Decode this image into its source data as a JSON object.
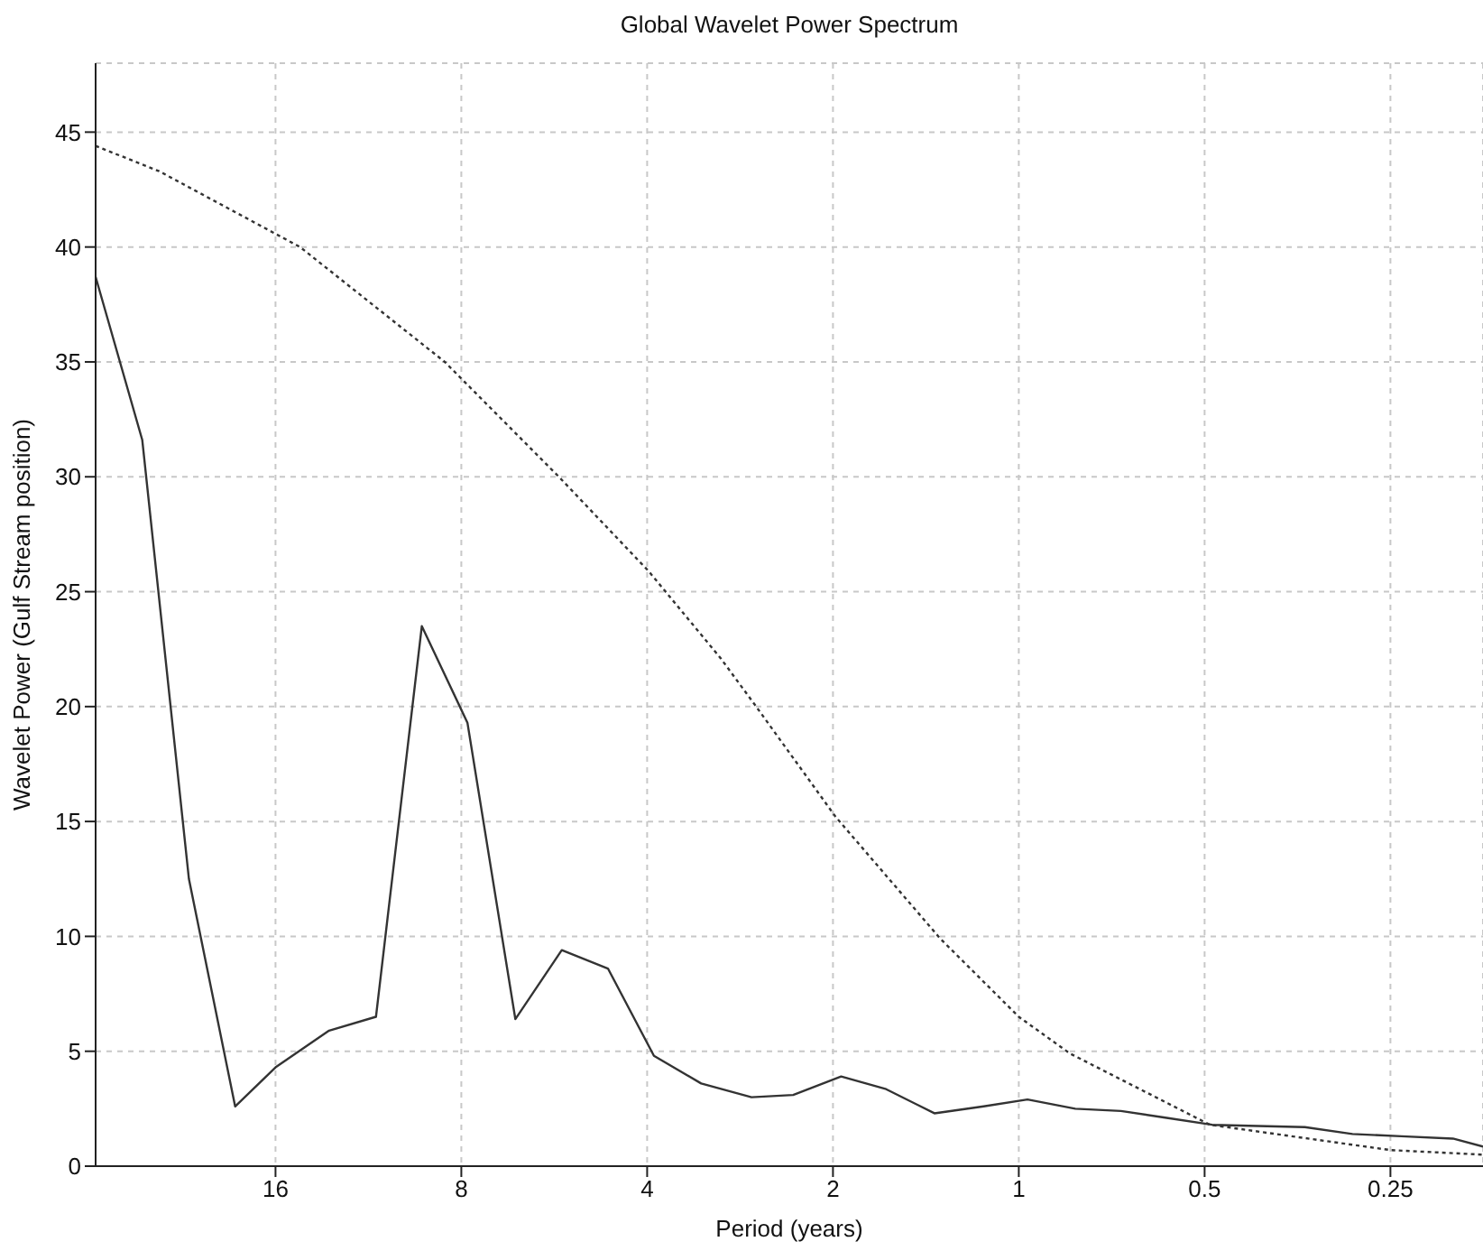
{
  "chart_data": {
    "type": "line",
    "title": "Global Wavelet Power Spectrum",
    "xlabel": "Period (years)",
    "ylabel": "Wavelet Power (Gulf Stream position)",
    "log": "x",
    "grid": true,
    "marker": "none",
    "xlim": [
      31.3,
      0.177
    ],
    "xticks": [
      16,
      8,
      4,
      2,
      1,
      0.5,
      0.25
    ],
    "ylim": [
      0,
      48
    ],
    "yticks": [
      0,
      5,
      10,
      15,
      20,
      25,
      30,
      35,
      40,
      45
    ],
    "series": [
      {
        "color": "#333333",
        "line_style": "solid",
        "x": [
          31.3,
          26.3,
          22.1,
          18.6,
          16,
          13.1,
          11.0,
          9.27,
          7.82,
          6.54,
          5.5,
          4.63,
          3.9,
          3.27,
          2.71,
          2.32,
          1.94,
          1.64,
          1.37,
          1.14,
          0.968,
          0.81,
          0.683,
          0.576,
          0.486,
          0.41,
          0.344,
          0.288,
          0.24,
          0.198,
          0.177
        ],
        "values": [
          38.7,
          31.6,
          12.5,
          2.6,
          4.3,
          5.9,
          6.5,
          23.5,
          19.3,
          6.4,
          9.4,
          8.6,
          4.8,
          3.6,
          3.0,
          3.1,
          3.9,
          3.35,
          2.3,
          2.6,
          2.9,
          2.5,
          2.4,
          2.1,
          1.8,
          1.75,
          1.7,
          1.4,
          1.3,
          1.2,
          0.85
        ]
      },
      {
        "color": "#333333",
        "line_style": "dotted",
        "x": [
          31.3,
          24.7,
          14.6,
          8.51,
          5.56,
          3.98,
          3.04,
          2.68,
          1.98,
          1.34,
          1.0,
          0.826,
          0.49,
          0.25,
          0.177
        ],
        "values": [
          44.4,
          43.3,
          40.0,
          35.0,
          30.0,
          25.9,
          22.1,
          20.1,
          15.2,
          9.9,
          6.5,
          4.9,
          1.8,
          0.7,
          0.5
        ]
      }
    ]
  }
}
